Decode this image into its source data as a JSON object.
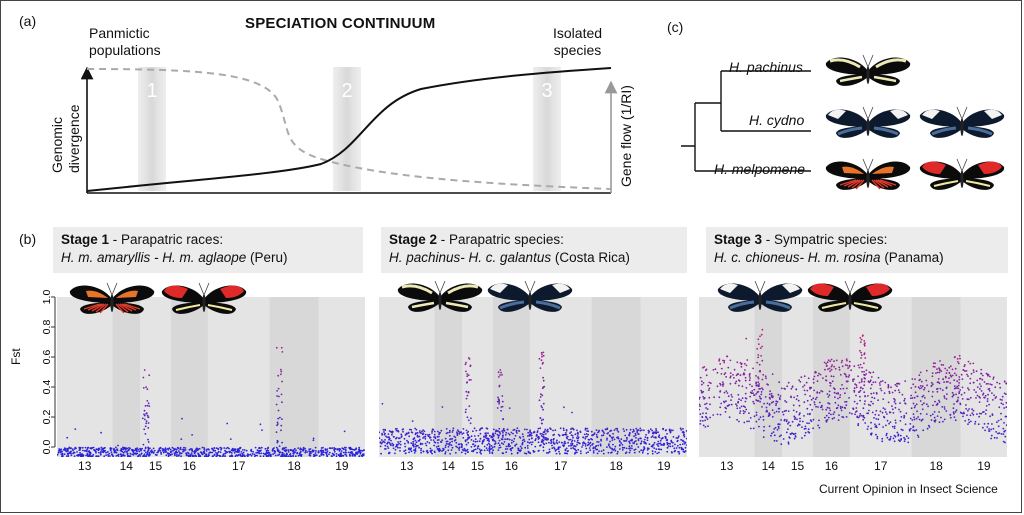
{
  "panel_a": {
    "label": "(a)",
    "title": "SPECIATION CONTINUUM",
    "left_top": [
      "Panmictic",
      "populations"
    ],
    "right_top": [
      "Isolated",
      "species"
    ],
    "y_left": [
      "Genomic",
      "divergence"
    ],
    "y_right": "Gene flow (1/RI)",
    "stage_numbers": [
      "1",
      "2",
      "3"
    ]
  },
  "panel_b": {
    "label": "(b)",
    "y_axis_label": "Fst",
    "y_ticks": [
      "0.0",
      "0.2",
      "0.4",
      "0.6",
      "0.8",
      "1.0"
    ],
    "stages": [
      {
        "stage": "Stage 1",
        "type": " - Parapatric races:",
        "taxa": "H. m. amaryllis - H. m. aglaope",
        "place": " (Peru)",
        "x_ticks": [
          "13",
          "14",
          "15",
          "16",
          "17",
          "18",
          "19"
        ]
      },
      {
        "stage": "Stage 2",
        "type": " - Parapatric species:",
        "taxa": "H. pachinus- H. c. galantus",
        "place": " (Costa Rica)",
        "x_ticks": [
          "13",
          "14",
          "15",
          "16",
          "17",
          "18",
          "19"
        ]
      },
      {
        "stage": "Stage 3",
        "type": " - Sympatric species:",
        "taxa": "H. c. chioneus- H. m. rosina",
        "place": " (Panama)",
        "x_ticks": [
          "13",
          "14",
          "15",
          "16",
          "17",
          "18",
          "19"
        ]
      }
    ]
  },
  "panel_c": {
    "label": "(c)",
    "species": [
      "H. pachinus",
      "H. cydno",
      "H. melpomene"
    ]
  },
  "credit": "Current Opinion in Insect Science",
  "colors": {
    "red": "#e02a2a",
    "yellow_band": "#f4f0c0",
    "black_wing": "#111111",
    "low_fst": "#2323dd",
    "high_fst": "#c0207a"
  },
  "chart_data": [
    {
      "type": "line",
      "title": "SPECIATION CONTINUUM",
      "series": [
        {
          "name": "Genomic divergence",
          "style": "solid",
          "x": [
            0,
            0.2,
            0.4,
            0.5,
            0.6,
            0.8,
            1.0
          ],
          "values": [
            0.0,
            0.1,
            0.2,
            0.3,
            0.7,
            0.9,
            1.0
          ]
        },
        {
          "name": "Gene flow (1/RI)",
          "style": "dashed",
          "x": [
            0,
            0.2,
            0.35,
            0.45,
            0.55,
            0.8,
            1.0
          ],
          "values": [
            1.0,
            0.98,
            0.85,
            0.45,
            0.2,
            0.1,
            0.0
          ]
        }
      ]
    },
    {
      "type": "scatter",
      "stage": "Stage 1",
      "xlabel": "",
      "ylabel": "Fst",
      "ylim": [
        0,
        1
      ],
      "categories": [
        "13",
        "14",
        "15",
        "16",
        "17",
        "18",
        "19"
      ],
      "baseline_fst": 0.03,
      "peaks": [
        {
          "chromosome": "15",
          "fst": 0.58
        },
        {
          "chromosome": "18",
          "fst": 0.7
        }
      ]
    },
    {
      "type": "scatter",
      "stage": "Stage 2",
      "xlabel": "",
      "ylabel": "Fst",
      "ylim": [
        0,
        1
      ],
      "categories": [
        "13",
        "14",
        "15",
        "16",
        "17",
        "18",
        "19"
      ],
      "baseline_fst": 0.1,
      "peaks": [
        {
          "chromosome": "15",
          "fst": 0.62
        },
        {
          "chromosome": "16",
          "fst": 0.55
        },
        {
          "chromosome": "17",
          "fst": 0.7
        }
      ]
    },
    {
      "type": "scatter",
      "stage": "Stage 3",
      "xlabel": "",
      "ylabel": "Fst",
      "ylim": [
        0,
        1
      ],
      "categories": [
        "13",
        "14",
        "15",
        "16",
        "17",
        "18",
        "19"
      ],
      "baseline_fst": 0.35,
      "peaks": [
        {
          "chromosome": "14",
          "fst": 0.8
        },
        {
          "chromosome": "17",
          "fst": 0.8
        }
      ]
    }
  ]
}
